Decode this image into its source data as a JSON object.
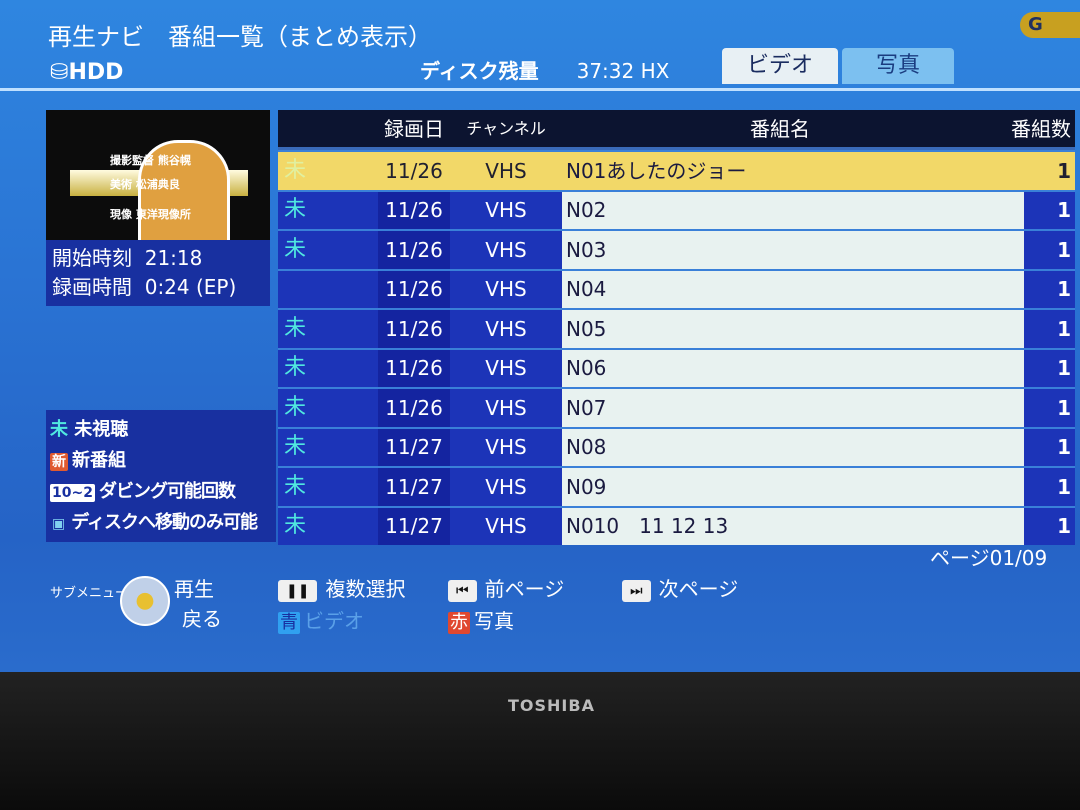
{
  "header": {
    "title": "再生ナビ　番組一覧（まとめ表示）",
    "device": "HDD",
    "disk_label": "ディスク残量",
    "disk_remaining": "37:32 HX",
    "logo": "G"
  },
  "tabs": [
    {
      "label": "ビデオ",
      "active": true
    },
    {
      "label": "写真",
      "active": false
    }
  ],
  "thumbnail": {
    "credits": [
      "撮影監督 熊谷幌",
      "美術 松浦典良",
      "現像 東洋現像所"
    ]
  },
  "info": {
    "start_label": "開始時刻",
    "start_time": "21:18",
    "duration_label": "録画時間",
    "duration": "0:24 (EP)"
  },
  "legend": [
    {
      "badge": "未",
      "text": "未視聴"
    },
    {
      "badge": "新",
      "text": "新番組"
    },
    {
      "badge": "10~2",
      "text": "ダビング可能回数"
    },
    {
      "badge": "▣",
      "text": "ディスクへ移動のみ可能"
    }
  ],
  "table": {
    "columns": [
      "",
      "録画日",
      "チャンネル",
      "番組名",
      "番組数"
    ],
    "rows": [
      {
        "mark": "未",
        "date": "11/26",
        "channel": "VHS",
        "name": "N01あしたのジョー",
        "count": "1",
        "selected": true
      },
      {
        "mark": "未",
        "date": "11/26",
        "channel": "VHS",
        "name": "N02",
        "count": "1"
      },
      {
        "mark": "未",
        "date": "11/26",
        "channel": "VHS",
        "name": "N03",
        "count": "1"
      },
      {
        "mark": "",
        "date": "11/26",
        "channel": "VHS",
        "name": "N04",
        "count": "1"
      },
      {
        "mark": "未",
        "date": "11/26",
        "channel": "VHS",
        "name": "N05",
        "count": "1"
      },
      {
        "mark": "未",
        "date": "11/26",
        "channel": "VHS",
        "name": "N06",
        "count": "1"
      },
      {
        "mark": "未",
        "date": "11/26",
        "channel": "VHS",
        "name": "N07",
        "count": "1"
      },
      {
        "mark": "未",
        "date": "11/27",
        "channel": "VHS",
        "name": "N08",
        "count": "1"
      },
      {
        "mark": "未",
        "date": "11/27",
        "channel": "VHS",
        "name": "N09",
        "count": "1"
      },
      {
        "mark": "未",
        "date": "11/27",
        "channel": "VHS",
        "name": "N010　11  12  13",
        "count": "1"
      }
    ]
  },
  "page": "ページ01/09",
  "controls": {
    "sub_menu": "サブメニュー",
    "play": "再生",
    "back": "戻る",
    "multi_select": "複数選択",
    "prev_page": "前ページ",
    "next_page": "次ページ",
    "blue_key": "青",
    "blue_label": "ビデオ",
    "red_key": "赤",
    "red_label": "写真"
  },
  "bezel": {
    "brand": "TOSHIBA"
  },
  "colors": {
    "background": "#2a6ccc",
    "selected_row": "#f2d868",
    "unwatched": "#50e8e0",
    "red_key": "#e04830",
    "blue_key": "#30a0f0"
  }
}
